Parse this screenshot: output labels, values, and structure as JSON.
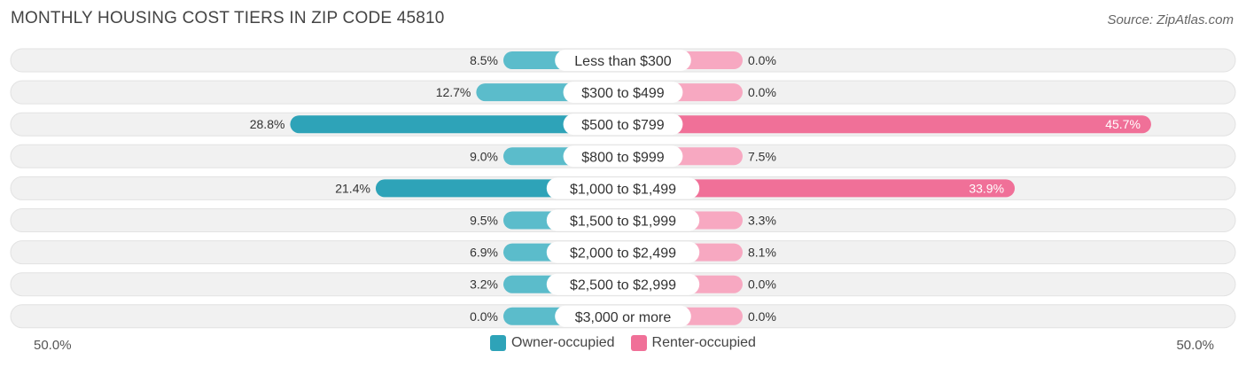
{
  "title": "MONTHLY HOUSING COST TIERS IN ZIP CODE 45810",
  "source": "Source: ZipAtlas.com",
  "axis": {
    "left_label": "50.0%",
    "right_label": "50.0%"
  },
  "colors": {
    "owner": "#5bbccb",
    "owner_strong": "#2ea3b8",
    "renter": "#f7a8c1",
    "renter_strong": "#f07098",
    "track": "#f1f1f1"
  },
  "chart_data": {
    "type": "bar",
    "orientation": "diverging-horizontal",
    "xlim": [
      -50,
      50
    ],
    "categories": [
      "Less than $300",
      "$300 to $499",
      "$500 to $799",
      "$800 to $999",
      "$1,000 to $1,499",
      "$1,500 to $1,999",
      "$2,000 to $2,499",
      "$2,500 to $2,999",
      "$3,000 or more"
    ],
    "series": [
      {
        "name": "Owner-occupied",
        "values": [
          8.5,
          12.7,
          28.8,
          9.0,
          21.4,
          9.5,
          6.9,
          3.2,
          0.0
        ],
        "labels": [
          "8.5%",
          "12.7%",
          "28.8%",
          "9.0%",
          "21.4%",
          "9.5%",
          "6.9%",
          "3.2%",
          "0.0%"
        ]
      },
      {
        "name": "Renter-occupied",
        "values": [
          0.0,
          0.0,
          45.7,
          7.5,
          33.9,
          3.3,
          8.1,
          0.0,
          0.0
        ],
        "labels": [
          "0.0%",
          "0.0%",
          "45.7%",
          "7.5%",
          "33.9%",
          "3.3%",
          "8.1%",
          "0.0%",
          "0.0%"
        ]
      }
    ],
    "legend": "bottom-center"
  }
}
